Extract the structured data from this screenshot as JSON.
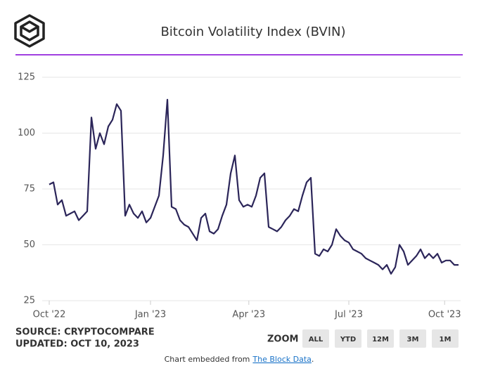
{
  "chart_data": {
    "type": "line",
    "title": "Bitcoin Volatility Index (BVIN)",
    "series": [
      {
        "name": "BVIN",
        "color": "#2b2559",
        "values": [
          77,
          78,
          68,
          70,
          63,
          64,
          65,
          61,
          63,
          65,
          107,
          93,
          100,
          95,
          103,
          106,
          113,
          110,
          63,
          68,
          64,
          62,
          65,
          60,
          62,
          67,
          72,
          90,
          115,
          67,
          66,
          61,
          59,
          58,
          55,
          52,
          62,
          64,
          56,
          55,
          57,
          63,
          68,
          82,
          90,
          70,
          67,
          68,
          67,
          72,
          80,
          82,
          58,
          57,
          56,
          58,
          61,
          63,
          66,
          65,
          72,
          78,
          80,
          46,
          45,
          48,
          47,
          50,
          57,
          54,
          52,
          51,
          48,
          47,
          46,
          44,
          43,
          42,
          41,
          39,
          41,
          37,
          40,
          50,
          47,
          41,
          43,
          45,
          48,
          44,
          46,
          44,
          46,
          42,
          43,
          43,
          41,
          41
        ]
      }
    ],
    "xlim": [
      0,
      97
    ],
    "xticks": [
      {
        "value": 0,
        "label": "Oct '22"
      },
      {
        "value": 24,
        "label": "Jan '23"
      },
      {
        "value": 47.3,
        "label": "Apr '23"
      },
      {
        "value": 71,
        "label": "Jul '23"
      },
      {
        "value": 93.7,
        "label": "Oct '23"
      }
    ],
    "ylim": [
      25,
      125
    ],
    "yticks": [
      25,
      50,
      75,
      100,
      125
    ],
    "grid": true
  },
  "source": {
    "line1": "SOURCE: CRYPTOCOMPARE",
    "line2": "UPDATED: OCT 10, 2023"
  },
  "zoom": {
    "label": "ZOOM",
    "buttons": [
      "ALL",
      "YTD",
      "12M",
      "3M",
      "1M"
    ]
  },
  "footer": {
    "prefix": "Chart embedded from",
    "link": "The Block Data",
    "suffix": "."
  }
}
